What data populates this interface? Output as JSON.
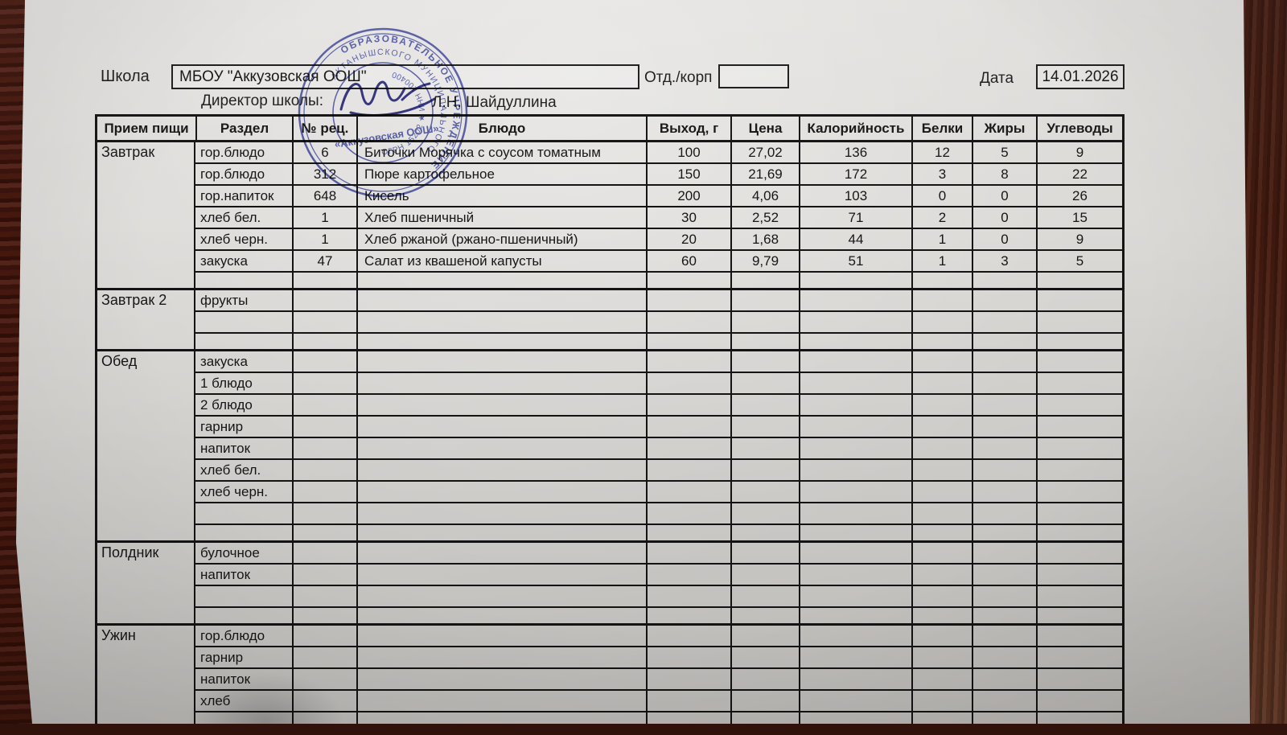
{
  "header": {
    "school_label": "Школа",
    "school_name": "МБОУ \"Аккузовская ООШ\"",
    "dept_label": "Отд./корп",
    "dept_value": "",
    "date_label": "Дата",
    "date_value": "14.01.2026",
    "director_label": "Директор школы:",
    "director_name": "Л.Н. Шайдуллина"
  },
  "stamp": {
    "ring_top": "ОБРАЗОВАТЕЛЬНОЕ УЧРЕЖДЕНИЕ",
    "ring_mid": "АКТАНЫШСКОГО МУНИЦИПАЛЬНОГО",
    "ring_inner": "ОГРН 15202 ★ ИНН 100400",
    "center": "«Аккузовская ООШ»",
    "ink_color": "#3d47a8"
  },
  "signature_ink_color": "#2d2d85",
  "table": {
    "columns": [
      "Прием пищи",
      "Раздел",
      "№ рец.",
      "Блюдо",
      "Выход, г",
      "Цена",
      "Калорийность",
      "Белки",
      "Жиры",
      "Углеводы"
    ],
    "sections": [
      {
        "meal": "Завтрак",
        "rows": [
          {
            "razdel": "гор.блюдо",
            "num": "6",
            "dish": "Биточки Морячка с соусом томатным",
            "out": "100",
            "price": "27,02",
            "kcal": "136",
            "prot": "12",
            "fat": "5",
            "carb": "9"
          },
          {
            "razdel": "гор.блюдо",
            "num": "312",
            "dish": "Пюре картофельное",
            "out": "150",
            "price": "21,69",
            "kcal": "172",
            "prot": "3",
            "fat": "8",
            "carb": "22"
          },
          {
            "razdel": "гор.напиток",
            "num": "648",
            "dish": "Кисель",
            "out": "200",
            "price": "4,06",
            "kcal": "103",
            "prot": "0",
            "fat": "0",
            "carb": "26"
          },
          {
            "razdel": "хлеб бел.",
            "num": "1",
            "dish": "Хлеб пшеничный",
            "out": "30",
            "price": "2,52",
            "kcal": "71",
            "prot": "2",
            "fat": "0",
            "carb": "15"
          },
          {
            "razdel": "хлеб черн.",
            "num": "1",
            "dish": "Хлеб ржаной (ржано-пшеничный)",
            "out": "20",
            "price": "1,68",
            "kcal": "44",
            "prot": "1",
            "fat": "0",
            "carb": "9"
          },
          {
            "razdel": "закуска",
            "num": "47",
            "dish": "Салат из квашеной капусты",
            "out": "60",
            "price": "9,79",
            "kcal": "51",
            "prot": "1",
            "fat": "3",
            "carb": "5"
          },
          {
            "razdel": "",
            "thin": true
          }
        ]
      },
      {
        "meal": "Завтрак 2",
        "rows": [
          {
            "razdel": "фрукты"
          },
          {
            "razdel": ""
          },
          {
            "razdel": "",
            "thin": true
          }
        ]
      },
      {
        "meal": "Обед",
        "rows": [
          {
            "razdel": "закуска"
          },
          {
            "razdel": "1 блюдо"
          },
          {
            "razdel": "2 блюдо"
          },
          {
            "razdel": "гарнир"
          },
          {
            "razdel": "напиток"
          },
          {
            "razdel": "хлеб бел."
          },
          {
            "razdel": "хлеб черн."
          },
          {
            "razdel": ""
          },
          {
            "razdel": "",
            "thin": true
          }
        ]
      },
      {
        "meal": "Полдник",
        "rows": [
          {
            "razdel": "булочное"
          },
          {
            "razdel": "напиток"
          },
          {
            "razdel": ""
          },
          {
            "razdel": "",
            "thin": true
          }
        ]
      },
      {
        "meal": "Ужин",
        "rows": [
          {
            "razdel": "гор.блюдо"
          },
          {
            "razdel": "гарнир"
          },
          {
            "razdel": "напиток"
          },
          {
            "razdel": "хлеб"
          },
          {
            "razdel": ""
          }
        ]
      }
    ]
  }
}
